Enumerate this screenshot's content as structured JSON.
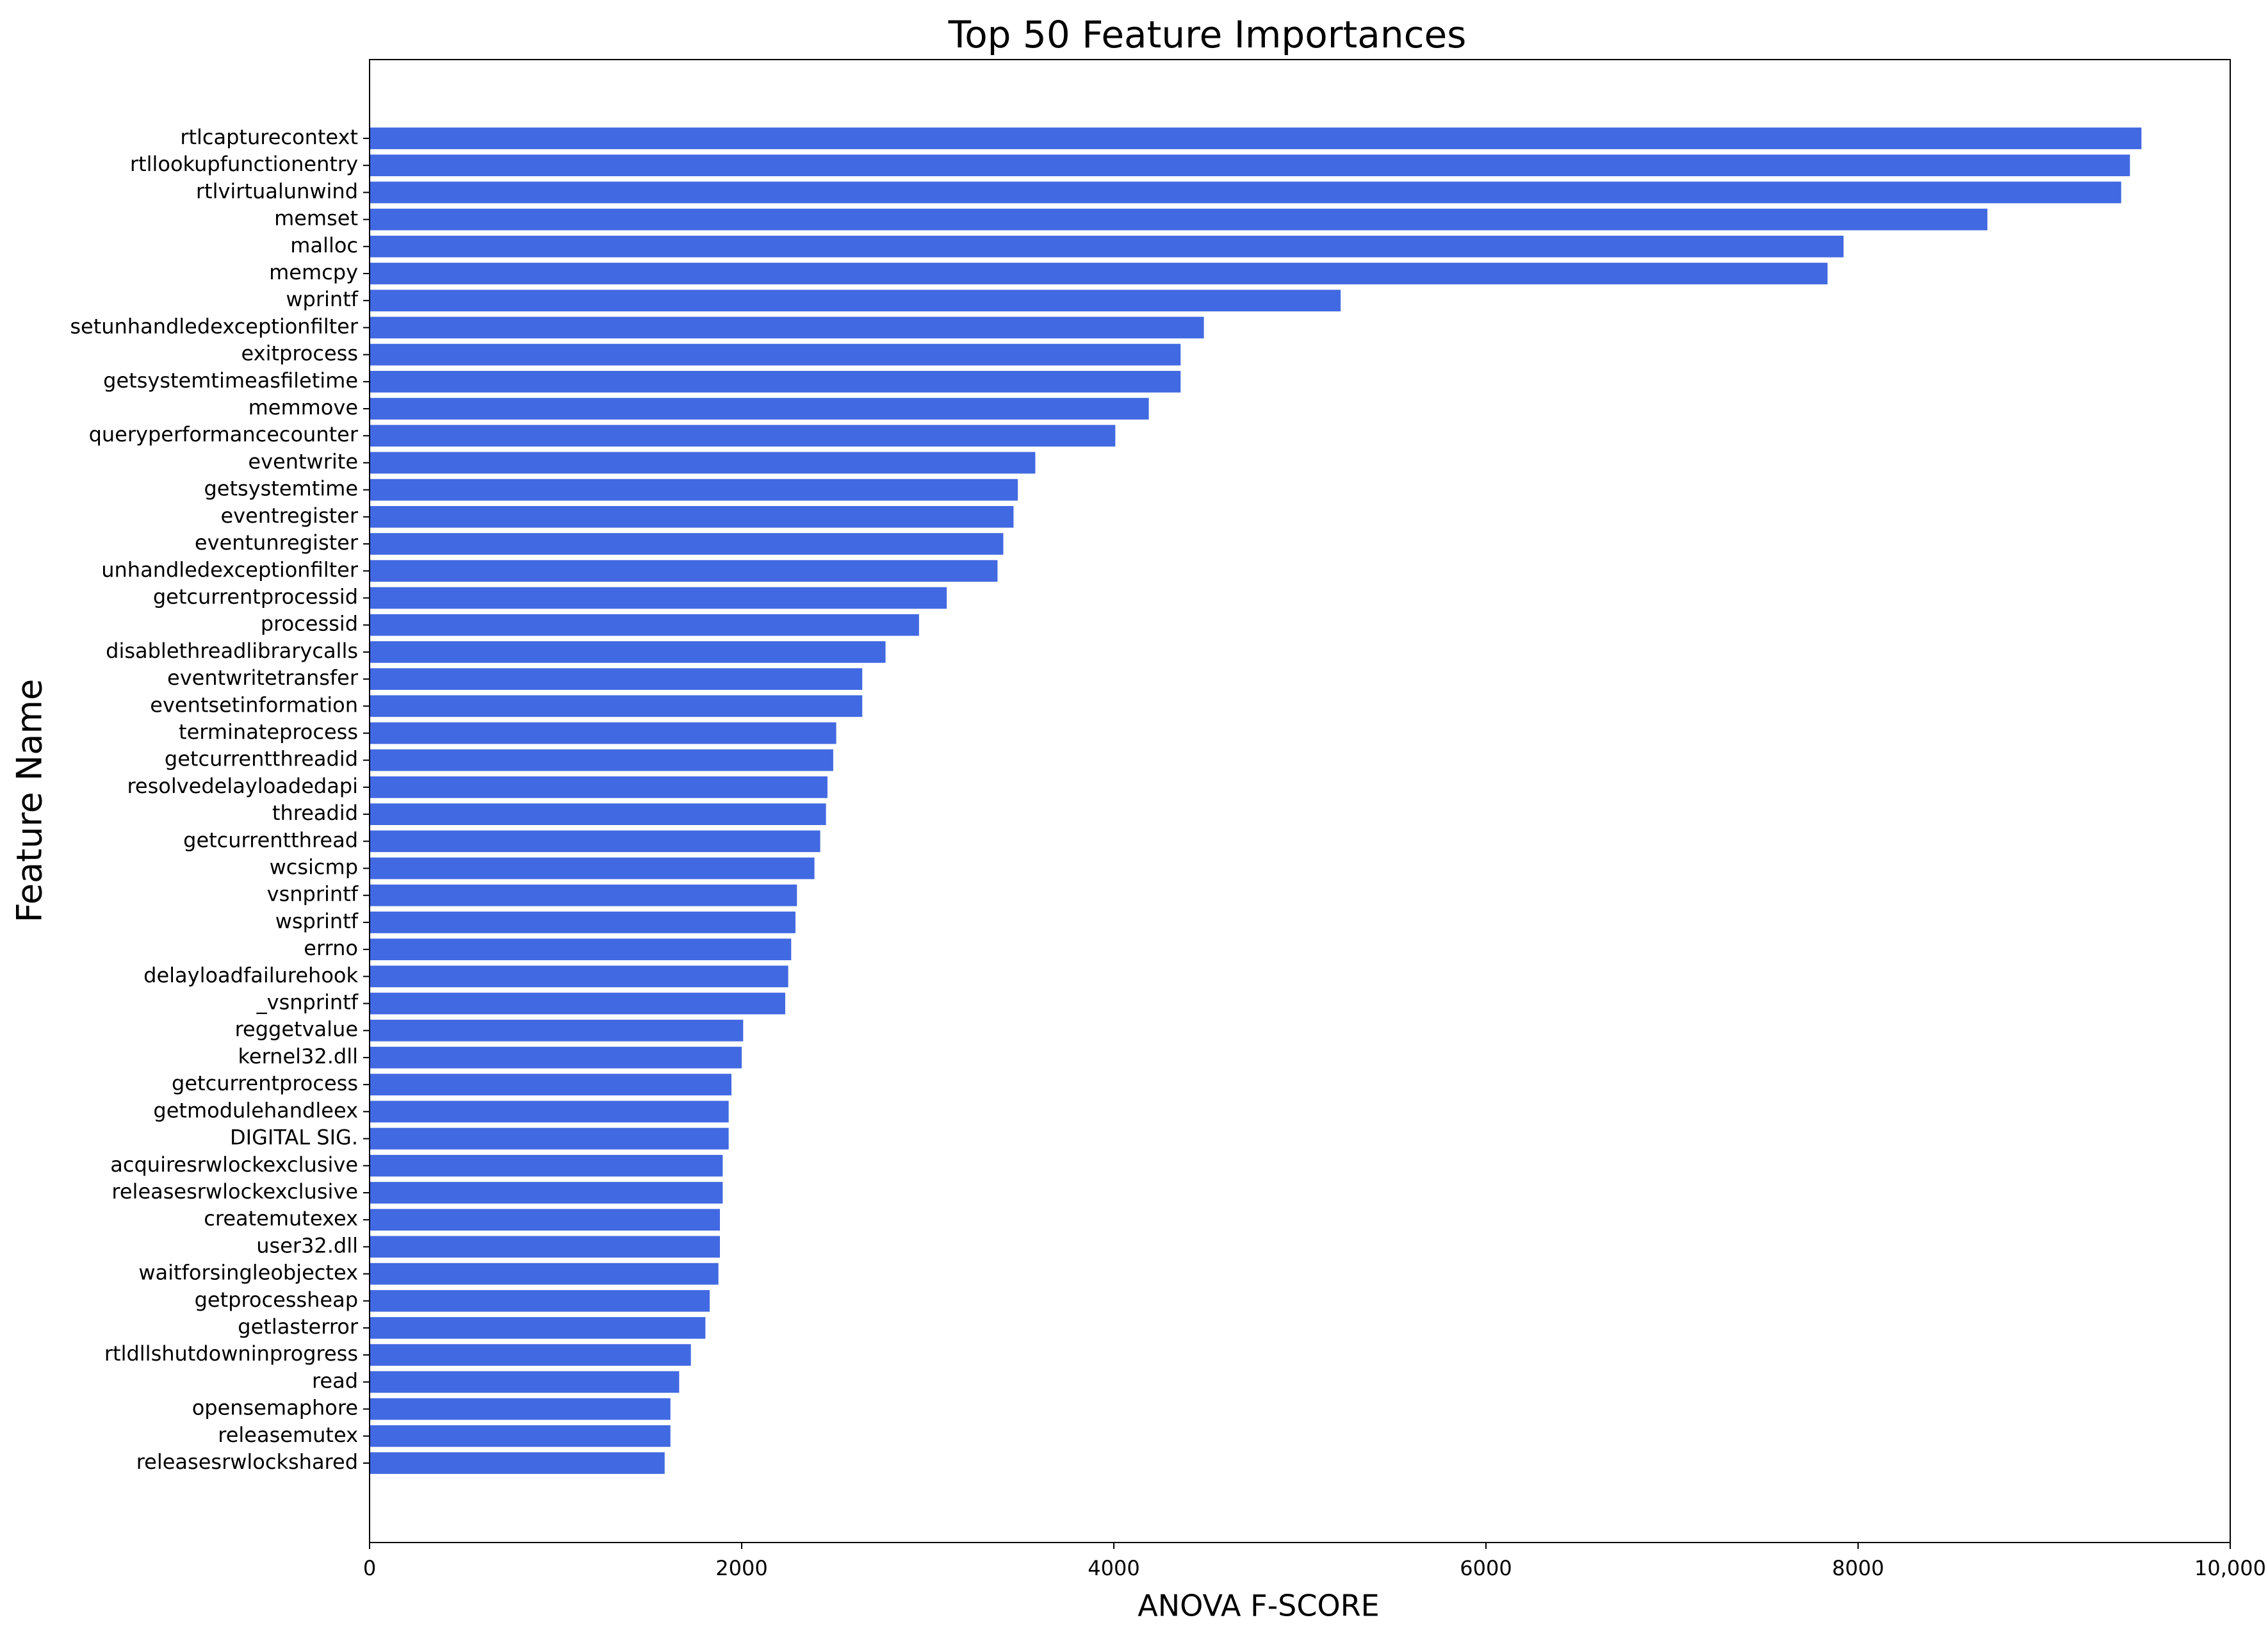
{
  "chart_data": {
    "type": "barh",
    "title": "Top 50 Feature Importances",
    "xlabel": "ANOVA F-SCORE",
    "ylabel": "Feature Name",
    "color": "#4169e1",
    "categories": [
      "rtlcapturecontext",
      "rtllookupfunctionentry",
      "rtlvirtualunwind",
      "memset",
      "malloc",
      "memcpy",
      "wprintf",
      "setunhandledexceptionfilter",
      "exitprocess",
      "getsystemtimeasfiletime",
      "memmove",
      "queryperformancecounter",
      "eventwrite",
      "getsystemtime",
      "eventregister",
      "eventunregister",
      "unhandledexceptionfilter",
      "getcurrentprocessid",
      "processid",
      "disablethreadlibrarycalls",
      "eventwritetransfer",
      "eventsetinformation",
      "terminateprocess",
      "getcurrentthreadid",
      "resolvedelayloadedapi",
      "threadid",
      "getcurrentthread",
      "wcsicmp",
      "vsnprintf",
      "wsprintf",
      "errno",
      "delayloadfailurehook",
      "_vsnprintf",
      "reggetvalue",
      "kernel32.dll",
      "getcurrentprocess",
      "getmodulehandleex",
      "DIGITAL SIG.",
      "acquiresrwlockexclusive",
      "releasesrwlockexclusive",
      "createmutexex",
      "user32.dll",
      "waitforsingleobjectex",
      "getprocessheap",
      "getlasterror",
      "rtldllshutdowninprogress",
      "read",
      "opensemaphore",
      "releasemutex",
      "releasesrwlockshared"
    ],
    "values": [
      9523,
      9461,
      9414,
      8695,
      7922,
      7836,
      5219,
      4484,
      4359,
      4359,
      4188,
      4008,
      3578,
      3484,
      3461,
      3406,
      3375,
      3102,
      2953,
      2773,
      2648,
      2648,
      2508,
      2492,
      2461,
      2453,
      2422,
      2391,
      2297,
      2289,
      2266,
      2250,
      2234,
      2008,
      2000,
      1945,
      1930,
      1930,
      1898,
      1898,
      1883,
      1883,
      1875,
      1828,
      1805,
      1727,
      1664,
      1617,
      1617,
      1586
    ],
    "xlim": [
      0,
      10000
    ],
    "xticks": [
      0,
      2000,
      4000,
      6000,
      8000,
      {
        "value": 10000,
        "label": "10,000"
      }
    ]
  }
}
